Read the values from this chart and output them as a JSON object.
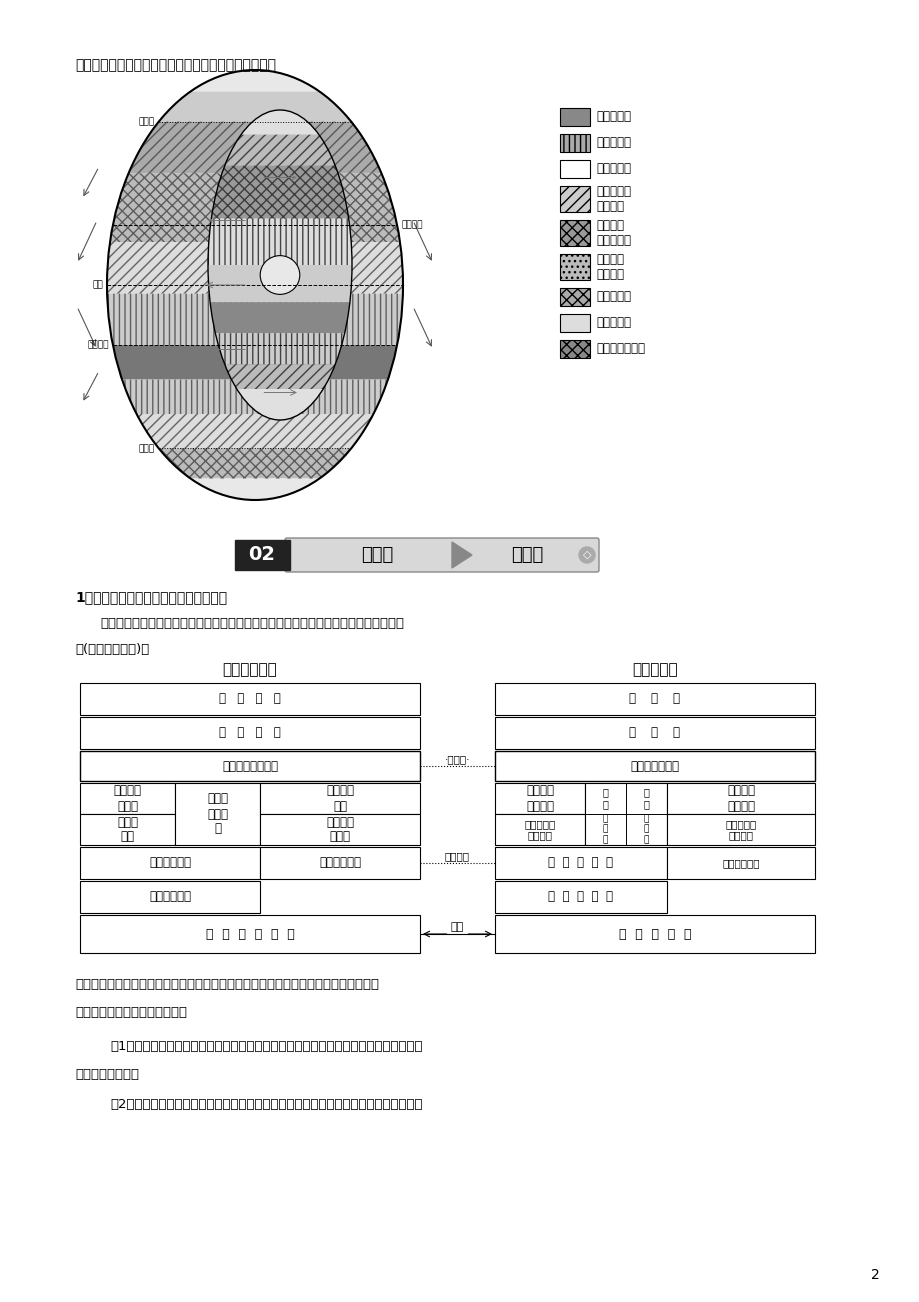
{
  "bg_color": "#ffffff",
  "page_number": "2",
  "top_text": "带只反映水平分异规律。理想大陆自然带分布图如下：",
  "section_header_num": "02",
  "section_header_text1": "抓重点",
  "section_header_text2": "提能力",
  "point1_title": "1．掌握陆地自然带与气候带的对应关系",
  "point1_body1": "不同的气候对应不同的自然带类型，不同的自然带都有与之对应的气候类型。如下图所",
  "point1_body2": "示(以北半球为例)：",
  "left_col_title": "世界气候类型",
  "right_col_title": "陆地自然带",
  "bottom_text1": "自然带的分布并不完全与气候类型相吻合，因为自然带是气候、地貌、水文、生物和土",
  "bottom_text2": "壤等多种要素共同作用形成的。",
  "bottom_text3": "（1）相同的自然带对应的气候类型不尽相同，如温带落叶阔叶林带对应温带海洋性气候",
  "bottom_text4": "和温带季风气候。",
  "bottom_text5": "（2）相同的气候类型对应的自然带不唯一，如温带大陆性气候对应的自然带主要为温带",
  "legend_items": [
    {
      "label": "热带雨林带",
      "hatch": "===",
      "fc": "#888888"
    },
    {
      "label": "热带草原带",
      "hatch": "|||",
      "fc": "#aaaaaa"
    },
    {
      "label": "热带荒漠带",
      "hatch": "",
      "fc": "#ffffff"
    },
    {
      "label": "亚热带常绿\n硬叶林带",
      "hatch": "///",
      "fc": "#cccccc"
    },
    {
      "label": "亚热带常\n绿阔叶林带",
      "hatch": "xxx",
      "fc": "#999999"
    },
    {
      "label": "温带落叶\n阔叶林带",
      "hatch": "...",
      "fc": "#bbbbbb"
    },
    {
      "label": "温带草原带",
      "hatch": "xxx",
      "fc": "#aaaaaa"
    },
    {
      "label": "温带荒漠带",
      "hatch": "",
      "fc": "#dddddd"
    },
    {
      "label": "亚寒带针叶林带",
      "hatch": "xxx",
      "fc": "#888888"
    }
  ]
}
